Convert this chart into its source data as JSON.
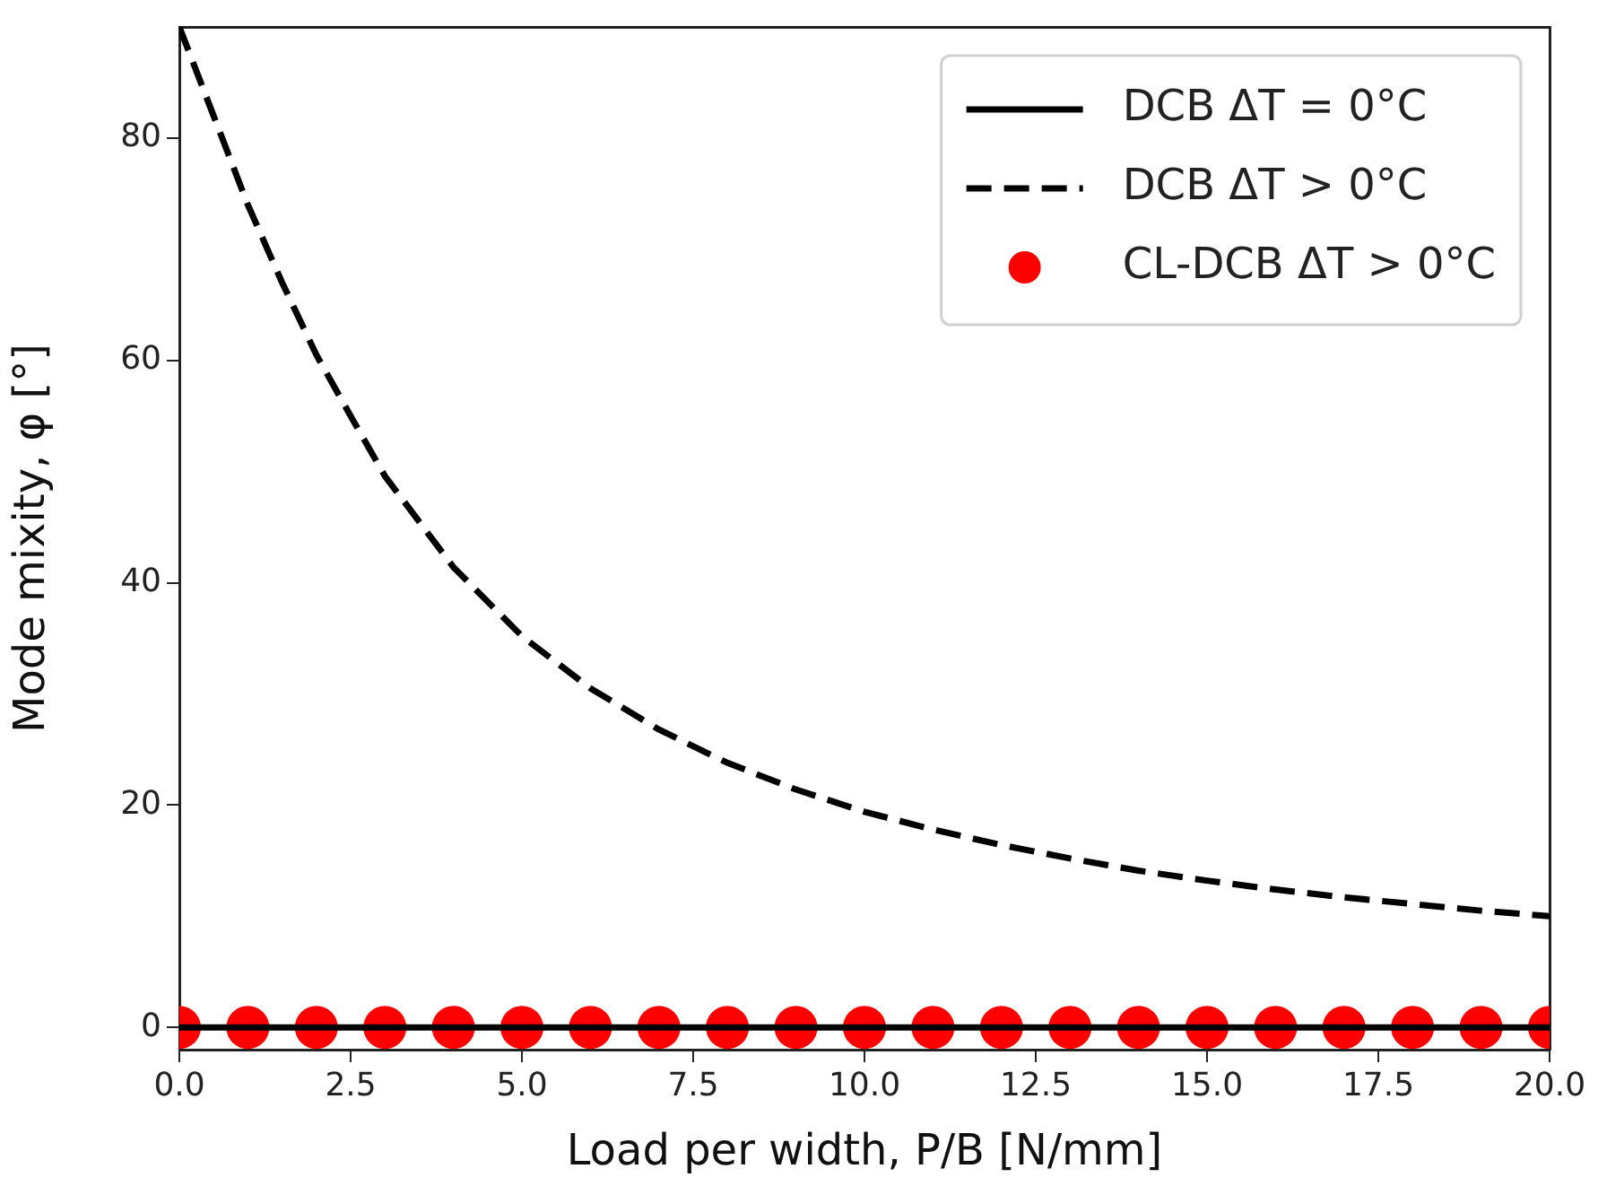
{
  "chart_data": {
    "type": "line",
    "xlabel": "Load per width, P/B [N/mm]",
    "ylabel": "Mode mixity, φ [°]",
    "xlim": [
      0,
      20
    ],
    "ylim": [
      -2,
      90
    ],
    "xticks": [
      {
        "value": 0,
        "label": "0.0"
      },
      {
        "value": 2.5,
        "label": "2.5"
      },
      {
        "value": 5,
        "label": "5.0"
      },
      {
        "value": 7.5,
        "label": "7.5"
      },
      {
        "value": 10,
        "label": "10.0"
      },
      {
        "value": 12.5,
        "label": "12.5"
      },
      {
        "value": 15,
        "label": "15.0"
      },
      {
        "value": 17.5,
        "label": "17.5"
      },
      {
        "value": 20,
        "label": "20.0"
      }
    ],
    "yticks": [
      0,
      20,
      40,
      60,
      80
    ],
    "grid": false,
    "legend": "top right",
    "series": [
      {
        "name": "DCB ΔT = 0°C",
        "line_style": "solid",
        "marker": "none",
        "color": "#000000",
        "x": [
          0,
          20
        ],
        "values": [
          0,
          0
        ]
      },
      {
        "name": "DCB ΔT > 0°C",
        "line_style": "dashed",
        "marker": "none",
        "color": "#000000",
        "x": [
          0,
          0.5,
          1,
          1.5,
          2,
          2.5,
          3,
          4,
          5,
          6,
          7,
          8,
          9,
          10,
          11,
          12,
          13,
          14,
          15,
          16,
          17,
          18,
          19,
          20
        ],
        "values": [
          90,
          82,
          74,
          67,
          60.5,
          55,
          49.6,
          41.4,
          35.2,
          30.5,
          26.8,
          23.8,
          21.4,
          19.4,
          17.8,
          16.4,
          15.2,
          14.1,
          13.2,
          12.4,
          11.7,
          11.1,
          10.5,
          10
        ]
      },
      {
        "name": "CL-DCB ΔT > 0°C",
        "type": "scatter",
        "marker": "circle",
        "color": "#ff0000",
        "x": [
          0,
          1,
          2,
          3,
          4,
          5,
          6,
          7,
          8,
          9,
          10,
          11,
          12,
          13,
          14,
          15,
          16,
          17,
          18,
          19,
          20
        ],
        "values": [
          0,
          0,
          0,
          0,
          0,
          0,
          0,
          0,
          0,
          0,
          0,
          0,
          0,
          0,
          0,
          0,
          0,
          0,
          0,
          0,
          0
        ]
      }
    ]
  }
}
